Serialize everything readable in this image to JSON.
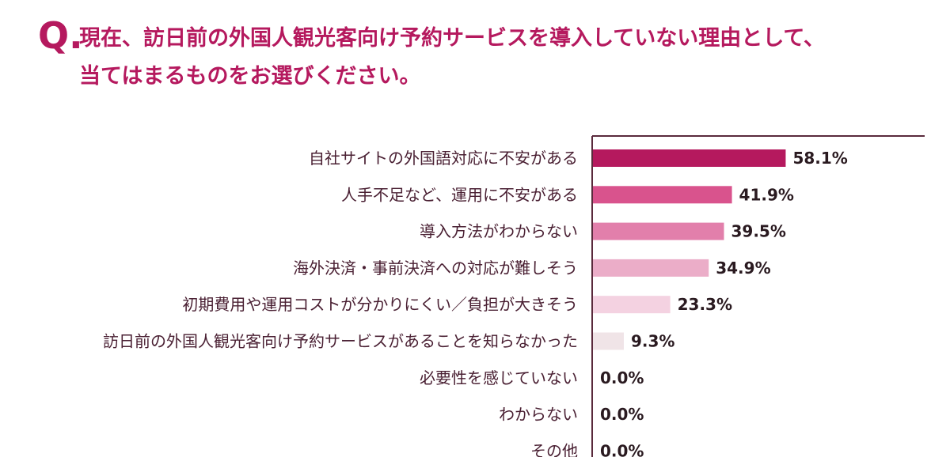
{
  "question": {
    "mark": "Q.",
    "line1": "現在、訪日前の外国人観光客向け予約サービスを導入していない理由として、",
    "line2": "当てはまるものをお選びください。"
  },
  "chart_data": {
    "type": "bar",
    "orientation": "horizontal",
    "title": "",
    "xlabel": "",
    "ylabel": "",
    "xlim": [
      0,
      100
    ],
    "categories": [
      "自社サイトの外国語対応に不安がある",
      "人手不足など、運用に不安がある",
      "導入方法がわからない",
      "海外決済・事前決済への対応が難しそう",
      "初期費用や運用コストが分かりにくい／負担が大きそう",
      "訪日前の外国人観光客向け予約サービスがあることを知らなかった",
      "必要性を感じていない",
      "わからない",
      "その他"
    ],
    "values": [
      58.1,
      41.9,
      39.5,
      34.9,
      23.3,
      9.3,
      0.0,
      0.0,
      0.0
    ],
    "value_labels": [
      "58.1%",
      "41.9%",
      "39.5%",
      "34.9%",
      "23.3%",
      "9.3%",
      "0.0%",
      "0.0%",
      "0.0%"
    ],
    "colors": [
      "#b5195e",
      "#d9538d",
      "#e27fab",
      "#ebadc8",
      "#f4d2e1",
      "#f0e4e7",
      "#f0e4e7",
      "#f0e4e7",
      "#f0e4e7"
    ],
    "axis_color": "#5a2a3c",
    "grid": false,
    "legend": "none"
  }
}
